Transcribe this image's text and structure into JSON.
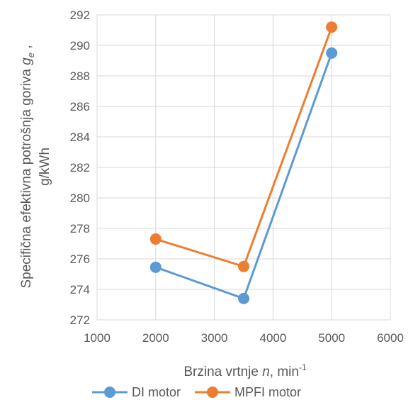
{
  "chart_data": {
    "type": "line",
    "x": [
      2000,
      3500,
      5000
    ],
    "series": [
      {
        "name": "DI motor",
        "color": "#5B9BD5",
        "values": [
          275.45,
          273.4,
          289.5
        ]
      },
      {
        "name": "MPFI motor",
        "color": "#ED7D31",
        "values": [
          277.3,
          275.5,
          291.2
        ]
      }
    ],
    "xlim": [
      1000,
      6000
    ],
    "ylim": [
      272,
      292
    ],
    "x_ticks": [
      1000,
      2000,
      3000,
      4000,
      5000,
      6000
    ],
    "y_ticks": [
      272,
      274,
      276,
      278,
      280,
      282,
      284,
      286,
      288,
      290,
      292
    ],
    "xlabel": {
      "prefix": "Brzina vrtnje ",
      "italic": "n",
      "suffix": ", min",
      "superscript": "-1"
    },
    "ylabel": {
      "line1_prefix": "Specifična efektivna potrošnja goriva ",
      "line1_italic": "g",
      "line1_subscript": "e",
      "line1_suffix": " ,",
      "line2": "g/kWh"
    },
    "grid": true,
    "legend_position": "bottom",
    "markers": "circle"
  }
}
